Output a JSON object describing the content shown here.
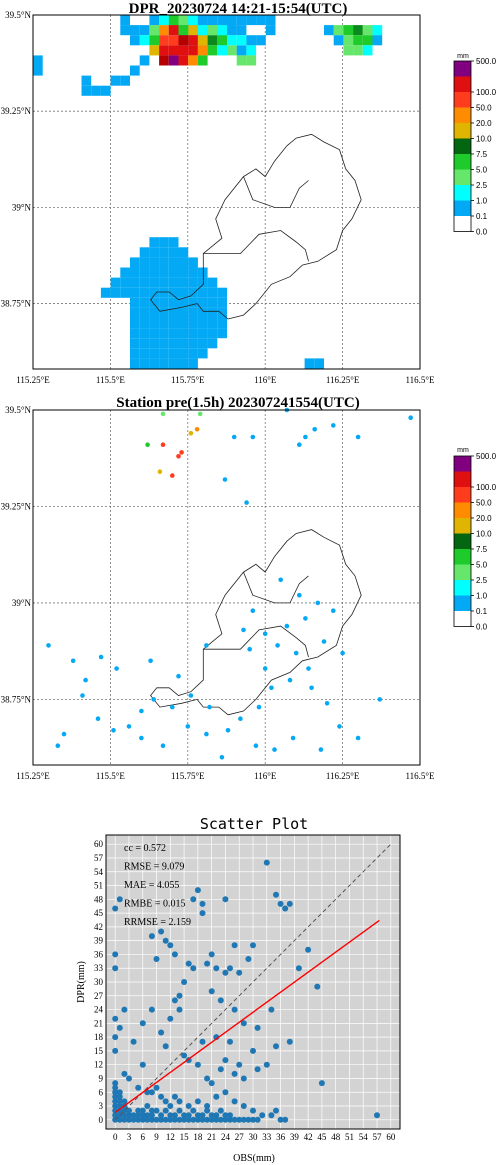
{
  "colors": {
    "white": "#ffffff",
    "light_blue": "#03a9f4",
    "cyan": "#00ffff",
    "green_light": "#66e66b",
    "green": "#1ecb2b",
    "green_dark": "#0a8a1c",
    "dark_green": "#056612",
    "yellow": "#e0b500",
    "orange": "#ff8c00",
    "red_orange": "#ff3c1e",
    "red": "#e01010",
    "dark_red": "#b50000",
    "purple": "#800080",
    "scatter_bg": "#d3d3d3",
    "scatter_point": "#1f77b4",
    "fit_line": "#ff0000",
    "identity_line": "#555555"
  },
  "chart_data": [
    {
      "type": "heatmap",
      "title": "DPR_20230724 14:21-15:54(UTC)",
      "x_ticks": [
        {
          "value": 115.25,
          "label": "115.25°E"
        },
        {
          "value": 115.5,
          "label": "115.5°E"
        },
        {
          "value": 115.75,
          "label": "115.75°E"
        },
        {
          "value": 116.0,
          "label": "116°E"
        },
        {
          "value": 116.25,
          "label": "116.25°E"
        },
        {
          "value": 116.5,
          "label": "116.5°E"
        }
      ],
      "y_ticks": [
        {
          "value": 39.5,
          "label": "39.5°N"
        },
        {
          "value": 39.25,
          "label": "39.25°N"
        },
        {
          "value": 39.0,
          "label": "39°N"
        },
        {
          "value": 38.75,
          "label": "38.75°N"
        }
      ],
      "xlim": [
        115.25,
        116.5
      ],
      "ylim": [
        38.58,
        39.5
      ],
      "grid": true,
      "colorbar": {
        "unit": "mm",
        "levels": [
          "0.0",
          "0.1",
          "1.0",
          "2.5",
          "5.0",
          "7.5",
          "10.0",
          "20.0",
          "50.0",
          "100.0",
          "500.0"
        ],
        "colors": [
          "#ffffff",
          "#03a9f4",
          "#00ffff",
          "#66e66b",
          "#1ecb2b",
          "#056612",
          "#e0b500",
          "#ff8c00",
          "#ff3c1e",
          "#e01010",
          "#800080"
        ]
      }
    },
    {
      "type": "scatter",
      "title": "Station pre(1.5h) 202307241554(UTC)",
      "x_ticks": [
        {
          "value": 115.25,
          "label": "115.25°E"
        },
        {
          "value": 115.5,
          "label": "115.5°E"
        },
        {
          "value": 115.75,
          "label": "115.75°E"
        },
        {
          "value": 116.0,
          "label": "116°E"
        },
        {
          "value": 116.25,
          "label": "116.25°E"
        },
        {
          "value": 116.5,
          "label": "116.5°E"
        }
      ],
      "y_ticks": [
        {
          "value": 39.5,
          "label": "39.5°N"
        },
        {
          "value": 39.25,
          "label": "39.25°N"
        },
        {
          "value": 39.0,
          "label": "39°N"
        },
        {
          "value": 38.75,
          "label": "38.75°N"
        }
      ],
      "xlim": [
        115.25,
        116.5
      ],
      "ylim": [
        38.58,
        39.5
      ],
      "grid": true,
      "colorbar": {
        "unit": "mm",
        "levels": [
          "0.0",
          "0.1",
          "1.0",
          "2.5",
          "5.0",
          "7.5",
          "10.0",
          "20.0",
          "50.0",
          "100.0",
          "500.0"
        ],
        "colors": [
          "#ffffff",
          "#03a9f4",
          "#00ffff",
          "#66e66b",
          "#1ecb2b",
          "#056612",
          "#e0b500",
          "#ff8c00",
          "#ff3c1e",
          "#e01010",
          "#800080"
        ]
      },
      "stations": [
        {
          "lon": 115.67,
          "lat": 39.49,
          "mm": 3.0
        },
        {
          "lon": 115.79,
          "lat": 39.49,
          "mm": 3.5
        },
        {
          "lon": 116.07,
          "lat": 39.5,
          "mm": 0.3
        },
        {
          "lon": 116.47,
          "lat": 39.48,
          "mm": 0.3
        },
        {
          "lon": 115.62,
          "lat": 39.41,
          "mm": 5.5
        },
        {
          "lon": 115.67,
          "lat": 39.41,
          "mm": 70.0
        },
        {
          "lon": 115.73,
          "lat": 39.39,
          "mm": 60.0
        },
        {
          "lon": 115.72,
          "lat": 39.38,
          "mm": 55.0
        },
        {
          "lon": 115.7,
          "lat": 39.33,
          "mm": 80.0
        },
        {
          "lon": 115.66,
          "lat": 39.34,
          "mm": 15.0
        },
        {
          "lon": 115.76,
          "lat": 39.44,
          "mm": 12.0
        },
        {
          "lon": 115.78,
          "lat": 39.45,
          "mm": 25.0
        },
        {
          "lon": 115.9,
          "lat": 39.43,
          "mm": 0.3
        },
        {
          "lon": 115.96,
          "lat": 39.43,
          "mm": 0.3
        },
        {
          "lon": 116.13,
          "lat": 39.43,
          "mm": 0.3
        },
        {
          "lon": 116.16,
          "lat": 39.45,
          "mm": 0.3
        },
        {
          "lon": 116.22,
          "lat": 39.46,
          "mm": 0.3
        },
        {
          "lon": 116.3,
          "lat": 39.43,
          "mm": 0.3
        },
        {
          "lon": 116.11,
          "lat": 39.41,
          "mm": 0.3
        },
        {
          "lon": 115.87,
          "lat": 39.32,
          "mm": 0.3
        },
        {
          "lon": 115.94,
          "lat": 39.26,
          "mm": 0.3
        },
        {
          "lon": 116.05,
          "lat": 39.06,
          "mm": 0.3
        },
        {
          "lon": 116.11,
          "lat": 39.02,
          "mm": 0.3
        },
        {
          "lon": 116.17,
          "lat": 39.0,
          "mm": 0.3
        },
        {
          "lon": 116.22,
          "lat": 38.98,
          "mm": 0.3
        },
        {
          "lon": 116.13,
          "lat": 38.96,
          "mm": 0.3
        },
        {
          "lon": 116.07,
          "lat": 38.94,
          "mm": 0.3
        },
        {
          "lon": 116.0,
          "lat": 38.92,
          "mm": 0.3
        },
        {
          "lon": 115.93,
          "lat": 38.93,
          "mm": 0.3
        },
        {
          "lon": 115.96,
          "lat": 38.98,
          "mm": 0.3
        },
        {
          "lon": 116.04,
          "lat": 38.89,
          "mm": 0.3
        },
        {
          "lon": 116.1,
          "lat": 38.87,
          "mm": 0.3
        },
        {
          "lon": 116.19,
          "lat": 38.9,
          "mm": 0.3
        },
        {
          "lon": 116.25,
          "lat": 38.87,
          "mm": 0.3
        },
        {
          "lon": 116.14,
          "lat": 38.83,
          "mm": 0.3
        },
        {
          "lon": 116.08,
          "lat": 38.8,
          "mm": 0.3
        },
        {
          "lon": 116.02,
          "lat": 38.78,
          "mm": 0.3
        },
        {
          "lon": 115.98,
          "lat": 38.73,
          "mm": 0.3
        },
        {
          "lon": 115.92,
          "lat": 38.7,
          "mm": 0.3
        },
        {
          "lon": 115.88,
          "lat": 38.67,
          "mm": 0.3
        },
        {
          "lon": 115.82,
          "lat": 38.73,
          "mm": 0.3
        },
        {
          "lon": 115.76,
          "lat": 38.76,
          "mm": 0.3
        },
        {
          "lon": 115.7,
          "lat": 38.73,
          "mm": 0.3
        },
        {
          "lon": 115.64,
          "lat": 38.75,
          "mm": 0.3
        },
        {
          "lon": 115.6,
          "lat": 38.72,
          "mm": 0.3
        },
        {
          "lon": 115.63,
          "lat": 38.85,
          "mm": 0.3
        },
        {
          "lon": 115.72,
          "lat": 38.81,
          "mm": 0.3
        },
        {
          "lon": 115.81,
          "lat": 38.89,
          "mm": 0.3
        },
        {
          "lon": 115.52,
          "lat": 38.83,
          "mm": 0.3
        },
        {
          "lon": 115.47,
          "lat": 38.86,
          "mm": 0.3
        },
        {
          "lon": 115.42,
          "lat": 38.8,
          "mm": 0.3
        },
        {
          "lon": 115.38,
          "lat": 38.85,
          "mm": 0.3
        },
        {
          "lon": 115.3,
          "lat": 38.89,
          "mm": 0.3
        },
        {
          "lon": 115.35,
          "lat": 38.66,
          "mm": 0.3
        },
        {
          "lon": 115.33,
          "lat": 38.63,
          "mm": 0.3
        },
        {
          "lon": 115.41,
          "lat": 38.76,
          "mm": 0.3
        },
        {
          "lon": 115.46,
          "lat": 38.7,
          "mm": 0.3
        },
        {
          "lon": 115.51,
          "lat": 38.67,
          "mm": 0.3
        },
        {
          "lon": 115.56,
          "lat": 38.68,
          "mm": 0.3
        },
        {
          "lon": 115.6,
          "lat": 38.65,
          "mm": 0.3
        },
        {
          "lon": 115.67,
          "lat": 38.63,
          "mm": 0.3
        },
        {
          "lon": 115.75,
          "lat": 38.68,
          "mm": 0.3
        },
        {
          "lon": 115.81,
          "lat": 38.66,
          "mm": 0.3
        },
        {
          "lon": 115.86,
          "lat": 38.6,
          "mm": 0.3
        },
        {
          "lon": 115.97,
          "lat": 38.63,
          "mm": 0.3
        },
        {
          "lon": 116.03,
          "lat": 38.62,
          "mm": 0.3
        },
        {
          "lon": 116.09,
          "lat": 38.65,
          "mm": 0.3
        },
        {
          "lon": 116.18,
          "lat": 38.62,
          "mm": 0.3
        },
        {
          "lon": 116.24,
          "lat": 38.68,
          "mm": 0.3
        },
        {
          "lon": 116.3,
          "lat": 38.65,
          "mm": 0.3
        },
        {
          "lon": 116.37,
          "lat": 38.75,
          "mm": 0.3
        },
        {
          "lon": 116.2,
          "lat": 38.74,
          "mm": 0.3
        },
        {
          "lon": 116.15,
          "lat": 38.78,
          "mm": 0.3
        },
        {
          "lon": 116.0,
          "lat": 38.83,
          "mm": 0.3
        },
        {
          "lon": 115.95,
          "lat": 38.88,
          "mm": 0.3
        }
      ]
    },
    {
      "type": "scatter",
      "title": "Scatter Plot",
      "xlabel": "OBS(mm)",
      "ylabel": "DPR(mm)",
      "xlim": [
        -2,
        62
      ],
      "ylim": [
        -2,
        62
      ],
      "x_ticks": [
        0,
        3,
        6,
        9,
        12,
        15,
        18,
        21,
        24,
        27,
        30,
        33,
        36,
        39,
        42,
        45,
        48,
        51,
        54,
        57,
        60
      ],
      "y_ticks": [
        0,
        3,
        6,
        9,
        12,
        15,
        18,
        21,
        24,
        27,
        30,
        33,
        36,
        39,
        42,
        45,
        48,
        51,
        54,
        57,
        60
      ],
      "grid": true,
      "stats": [
        "cc = 0.572",
        "RMSE = 9.079",
        "MAE = 4.055",
        "RMBE = 0.015",
        "RRMSE = 2.159"
      ],
      "identity_line": [
        [
          0,
          0
        ],
        [
          60,
          60
        ]
      ],
      "fit_line": [
        [
          0,
          1.6
        ],
        [
          57.5,
          43.4
        ]
      ],
      "points": [
        [
          0,
          0
        ],
        [
          1,
          0
        ],
        [
          2,
          0
        ],
        [
          3,
          0
        ],
        [
          4,
          0
        ],
        [
          5,
          0
        ],
        [
          6,
          0
        ],
        [
          7,
          0
        ],
        [
          8,
          0
        ],
        [
          9,
          0
        ],
        [
          10,
          0
        ],
        [
          11,
          0
        ],
        [
          12,
          0
        ],
        [
          13,
          0
        ],
        [
          14,
          0
        ],
        [
          15,
          0
        ],
        [
          16,
          0
        ],
        [
          17,
          0
        ],
        [
          18,
          0
        ],
        [
          19,
          0
        ],
        [
          20,
          0
        ],
        [
          21,
          0
        ],
        [
          22,
          0
        ],
        [
          23,
          0
        ],
        [
          24,
          0
        ],
        [
          25,
          0
        ],
        [
          26,
          0
        ],
        [
          27,
          0
        ],
        [
          28,
          0
        ],
        [
          29,
          0
        ],
        [
          30,
          0
        ],
        [
          31,
          0
        ],
        [
          36,
          0
        ],
        [
          37,
          0
        ],
        [
          0,
          1
        ],
        [
          1,
          1
        ],
        [
          2,
          1
        ],
        [
          3,
          1
        ],
        [
          4,
          1
        ],
        [
          0,
          2
        ],
        [
          1,
          2
        ],
        [
          2,
          2
        ],
        [
          3,
          2
        ],
        [
          0,
          3
        ],
        [
          1,
          3
        ],
        [
          2,
          3
        ],
        [
          0,
          4
        ],
        [
          1,
          4
        ],
        [
          2,
          4
        ],
        [
          0,
          5
        ],
        [
          1,
          5
        ],
        [
          0,
          6
        ],
        [
          1,
          6
        ],
        [
          0,
          7
        ],
        [
          0,
          8
        ],
        [
          5,
          1
        ],
        [
          6,
          1
        ],
        [
          7,
          1
        ],
        [
          8,
          1
        ],
        [
          5,
          2
        ],
        [
          6,
          2
        ],
        [
          7,
          3
        ],
        [
          8,
          2
        ],
        [
          9,
          2
        ],
        [
          10,
          1
        ],
        [
          11,
          2
        ],
        [
          12,
          1
        ],
        [
          13,
          1
        ],
        [
          14,
          2
        ],
        [
          15,
          1
        ],
        [
          16,
          1
        ],
        [
          17,
          2
        ],
        [
          18,
          1
        ],
        [
          19,
          1
        ],
        [
          20,
          2
        ],
        [
          21,
          1
        ],
        [
          22,
          1
        ],
        [
          23,
          2
        ],
        [
          24,
          1
        ],
        [
          25,
          1
        ],
        [
          8,
          6
        ],
        [
          9,
          7
        ],
        [
          10,
          5
        ],
        [
          11,
          4
        ],
        [
          12,
          3
        ],
        [
          13,
          5
        ],
        [
          14,
          4
        ],
        [
          16,
          3
        ],
        [
          18,
          4
        ],
        [
          20,
          3
        ],
        [
          22,
          5
        ],
        [
          24,
          6
        ],
        [
          26,
          4
        ],
        [
          28,
          3
        ],
        [
          30,
          2
        ],
        [
          32,
          1
        ],
        [
          34,
          1
        ],
        [
          35,
          2
        ],
        [
          2,
          10
        ],
        [
          3,
          9
        ],
        [
          5,
          7
        ],
        [
          6,
          12
        ],
        [
          7,
          6
        ],
        [
          0,
          15
        ],
        [
          0,
          18
        ],
        [
          0,
          22
        ],
        [
          1,
          20
        ],
        [
          2,
          24
        ],
        [
          4,
          17
        ],
        [
          6,
          21
        ],
        [
          8,
          24
        ],
        [
          10,
          19
        ],
        [
          11,
          16
        ],
        [
          12,
          22
        ],
        [
          13,
          26
        ],
        [
          14,
          24
        ],
        [
          15,
          14
        ],
        [
          16,
          13
        ],
        [
          18,
          12
        ],
        [
          19,
          17
        ],
        [
          20,
          9
        ],
        [
          21,
          8
        ],
        [
          22,
          18
        ],
        [
          23,
          11
        ],
        [
          24,
          13
        ],
        [
          25,
          17
        ],
        [
          26,
          10
        ],
        [
          27,
          12
        ],
        [
          28,
          9
        ],
        [
          30,
          15
        ],
        [
          31,
          11
        ],
        [
          33,
          12
        ],
        [
          34,
          24
        ],
        [
          38,
          17
        ],
        [
          45,
          8
        ],
        [
          57,
          1
        ],
        [
          0,
          33
        ],
        [
          0,
          36
        ],
        [
          0,
          46
        ],
        [
          1,
          48
        ],
        [
          8,
          40
        ],
        [
          9,
          35
        ],
        [
          10,
          41
        ],
        [
          11,
          39
        ],
        [
          12,
          38
        ],
        [
          13,
          36
        ],
        [
          14,
          27
        ],
        [
          15,
          30
        ],
        [
          16,
          34
        ],
        [
          17,
          33
        ],
        [
          17,
          48
        ],
        [
          18,
          50
        ],
        [
          19,
          47
        ],
        [
          19,
          45
        ],
        [
          20,
          34
        ],
        [
          21,
          36
        ],
        [
          22,
          33
        ],
        [
          24,
          32
        ],
        [
          24,
          48
        ],
        [
          25,
          33
        ],
        [
          26,
          38
        ],
        [
          27,
          32
        ],
        [
          29,
          35
        ],
        [
          30,
          38
        ],
        [
          33,
          56
        ],
        [
          35,
          49
        ],
        [
          36,
          47
        ],
        [
          37,
          46
        ],
        [
          38,
          47
        ],
        [
          42,
          37
        ],
        [
          44,
          29
        ],
        [
          21,
          28
        ],
        [
          23,
          26
        ],
        [
          26,
          24
        ],
        [
          28,
          21
        ],
        [
          31,
          20
        ],
        [
          35,
          16
        ],
        [
          40,
          33
        ]
      ]
    }
  ]
}
